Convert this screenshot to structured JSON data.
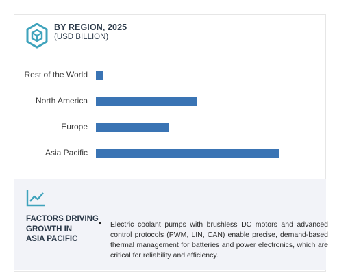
{
  "header": {
    "title": "BY REGION, 2025",
    "subtitle": "(USD BILLION)"
  },
  "chart_data": {
    "type": "bar",
    "orientation": "horizontal",
    "categories": [
      "Rest of the World",
      "North America",
      "Europe",
      "Asia Pacific"
    ],
    "values": [
      0.04,
      0.55,
      0.4,
      1.0
    ],
    "title": "BY REGION, 2025",
    "xlabel": "",
    "ylabel": "",
    "xlim": [
      0,
      1
    ],
    "grid": false,
    "bar_color": "#3a74b4"
  },
  "factors": {
    "title_lines": [
      "FACTORS DRIVING",
      "GROWTH IN",
      "ASIA PACIFIC"
    ],
    "bullet": "▪",
    "text": "Electric coolant pumps with brushless DC motors and advanced control protocols (PWM, LIN, CAN) enable precise, demand-based thermal management for batteries and power electronics, which are critical for reliability and efficiency."
  },
  "colors": {
    "accent": "#3a74b4",
    "icon": "#3fa3bc",
    "panel": "#f2f3f8"
  },
  "icons": {
    "header": "hexagon-cube-icon",
    "factors": "trend-chart-icon"
  }
}
